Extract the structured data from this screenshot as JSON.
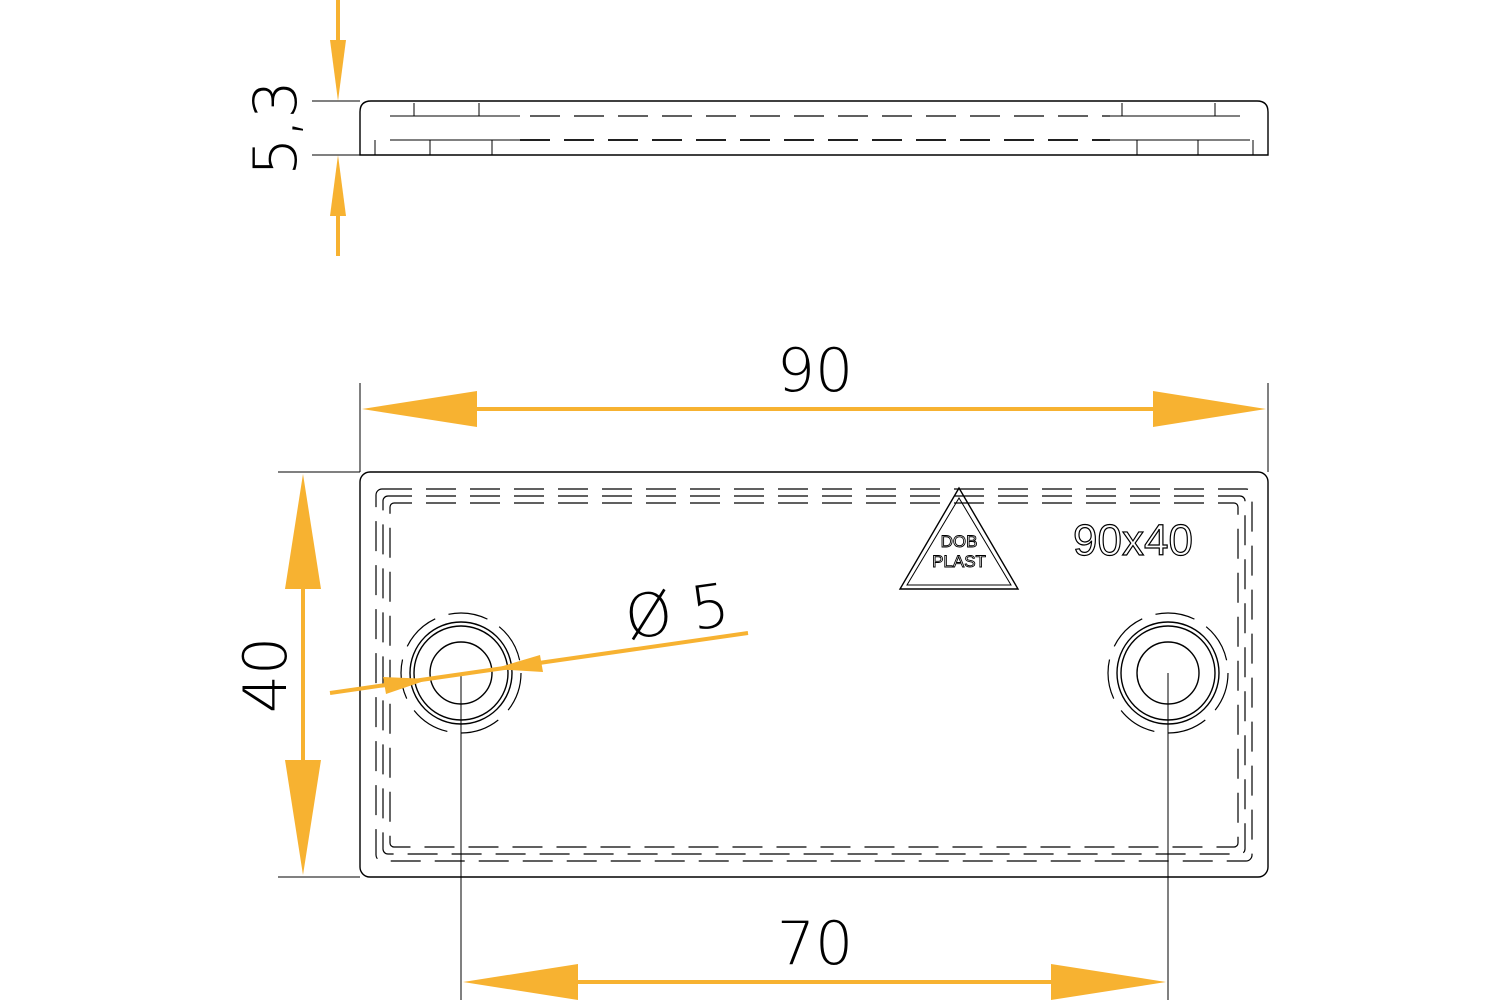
{
  "dimensions": {
    "thickness": "5,3",
    "length": "90",
    "width": "40",
    "hole_spacing": "70",
    "hole_diameter": "Ø 5"
  },
  "marking": {
    "logo_line1": "DOB",
    "logo_line2": "PLAST",
    "size_label": "90x40"
  },
  "colors": {
    "dimension_arrow": "#F7B231",
    "outline": "#000000"
  }
}
